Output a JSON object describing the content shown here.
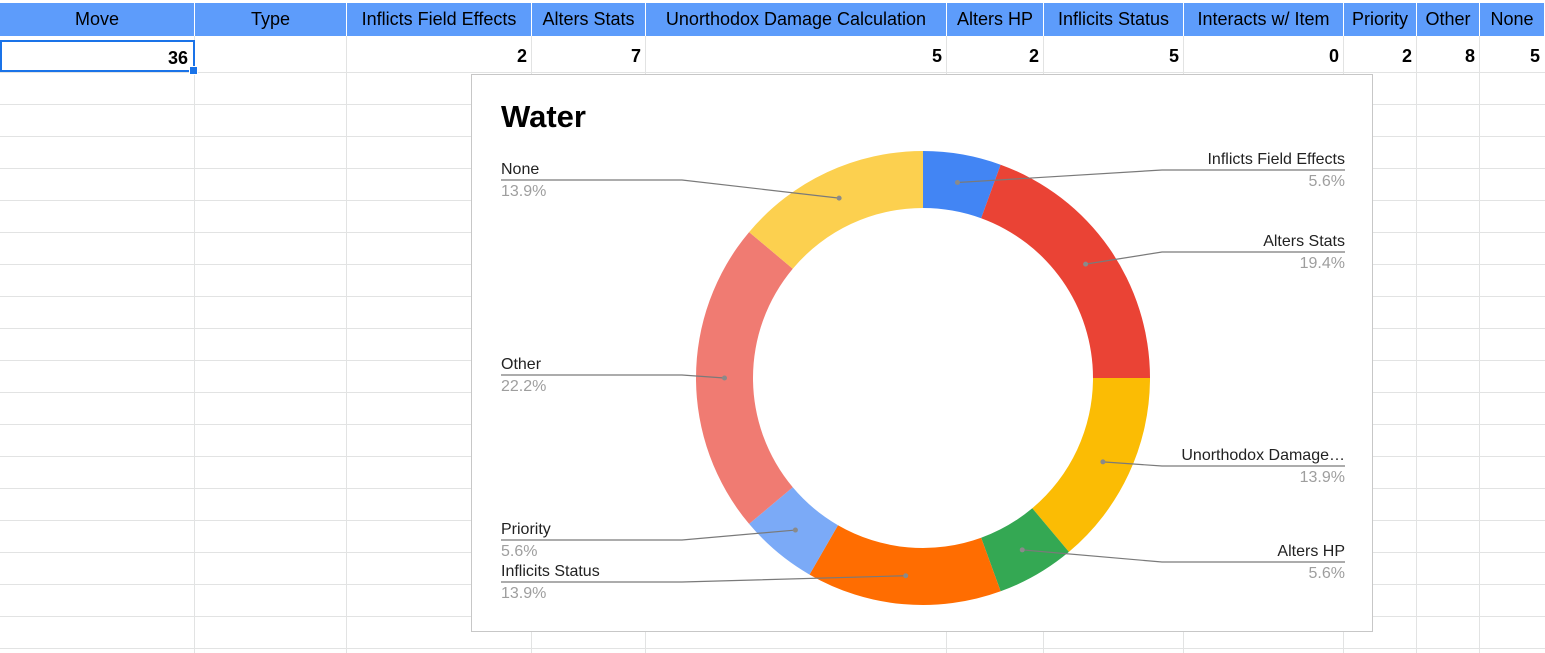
{
  "sheet": {
    "headers": [
      "Move",
      "Type",
      "Inflicts Field Effects",
      "Alters Stats",
      "Unorthodox Damage Calculation",
      "Alters HP",
      "Inflicits Status",
      "Interacts w/ Item",
      "Priority",
      "Other",
      "None"
    ],
    "row": [
      "36",
      "",
      "2",
      "7",
      "5",
      "2",
      "5",
      "0",
      "2",
      "8",
      "5"
    ]
  },
  "chart_data": {
    "type": "pie",
    "donut": true,
    "title": "Water",
    "slices": [
      {
        "label": "Inflicts Field Effects",
        "value": 2,
        "percent": "5.6%",
        "color": "#4285f4"
      },
      {
        "label": "Alters Stats",
        "value": 7,
        "percent": "19.4%",
        "color": "#ea4335"
      },
      {
        "label": "Unorthodox Damage…",
        "value": 5,
        "percent": "13.9%",
        "color": "#fbbc04"
      },
      {
        "label": "Alters HP",
        "value": 2,
        "percent": "5.6%",
        "color": "#34a853"
      },
      {
        "label": "Inflicits Status",
        "value": 5,
        "percent": "13.9%",
        "color": "#ff6d01"
      },
      {
        "label": "Priority",
        "value": 2,
        "percent": "5.6%",
        "color": "#7baaf7"
      },
      {
        "label": "Other",
        "value": 8,
        "percent": "22.2%",
        "color": "#f07b72"
      },
      {
        "label": "None",
        "value": 5,
        "percent": "13.9%",
        "color": "#fcd04f"
      }
    ],
    "legend": "labels"
  }
}
